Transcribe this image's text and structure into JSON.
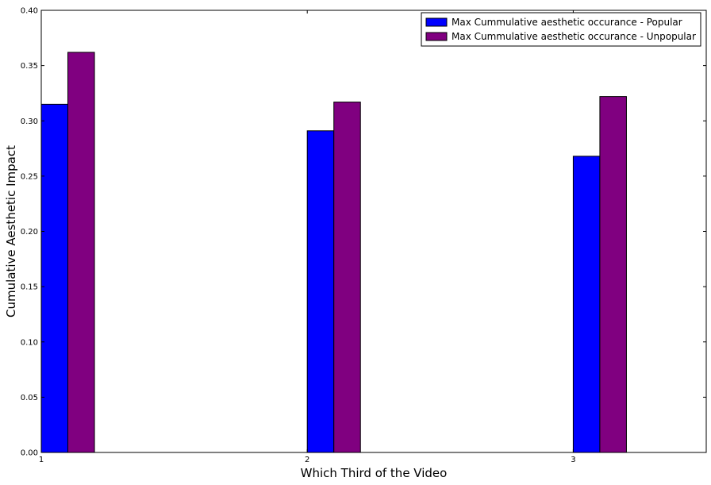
{
  "chart_data": {
    "type": "bar",
    "title": "",
    "xlabel": "Which Third of the Video",
    "ylabel": "Cumulative Aesthetic Impact",
    "x": [
      1,
      2,
      3
    ],
    "xticks": [
      "1",
      "2",
      "3"
    ],
    "xlim": [
      1,
      3.5
    ],
    "ylim": [
      0,
      0.4
    ],
    "yticks": [
      "0.00",
      "0.05",
      "0.10",
      "0.15",
      "0.20",
      "0.25",
      "0.30",
      "0.35",
      "0.40"
    ],
    "grid": false,
    "legend_position": "top-right",
    "series": [
      {
        "name": "Max Cummulative aesthetic occurance - Popular",
        "color": "#0000ff",
        "values": [
          0.315,
          0.291,
          0.268
        ]
      },
      {
        "name": "Max Cummulative aesthetic occurance - Unpopular",
        "color": "#800080",
        "values": [
          0.362,
          0.317,
          0.322
        ]
      }
    ]
  }
}
